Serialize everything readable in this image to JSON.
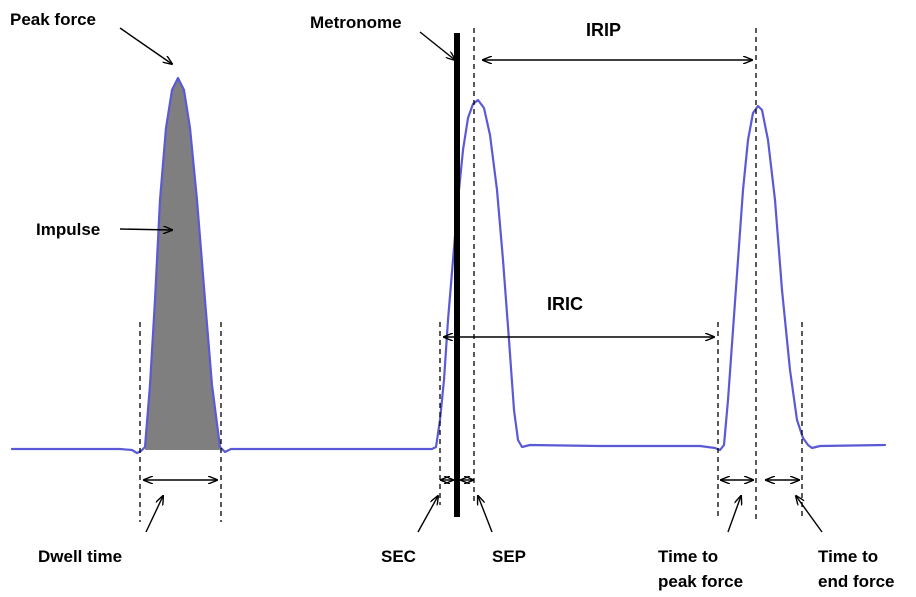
{
  "colors": {
    "trace": "#5a5ad6",
    "impulse_fill": "#7f7f7f",
    "metronome": "#000000",
    "text": "#000000"
  },
  "labels": {
    "peak_force": "Peak force",
    "metronome": "Metronome",
    "irip": "IRIP",
    "impulse": "Impulse",
    "iric": "IRIC",
    "dwell_time": "Dwell time",
    "sec": "SEC",
    "sep": "SEP",
    "time_to_peak_force_line1": "Time to",
    "time_to_peak_force_line2": "peak force",
    "time_to_end_force_line1": "Time to",
    "time_to_end_force_line2": "end force"
  }
}
